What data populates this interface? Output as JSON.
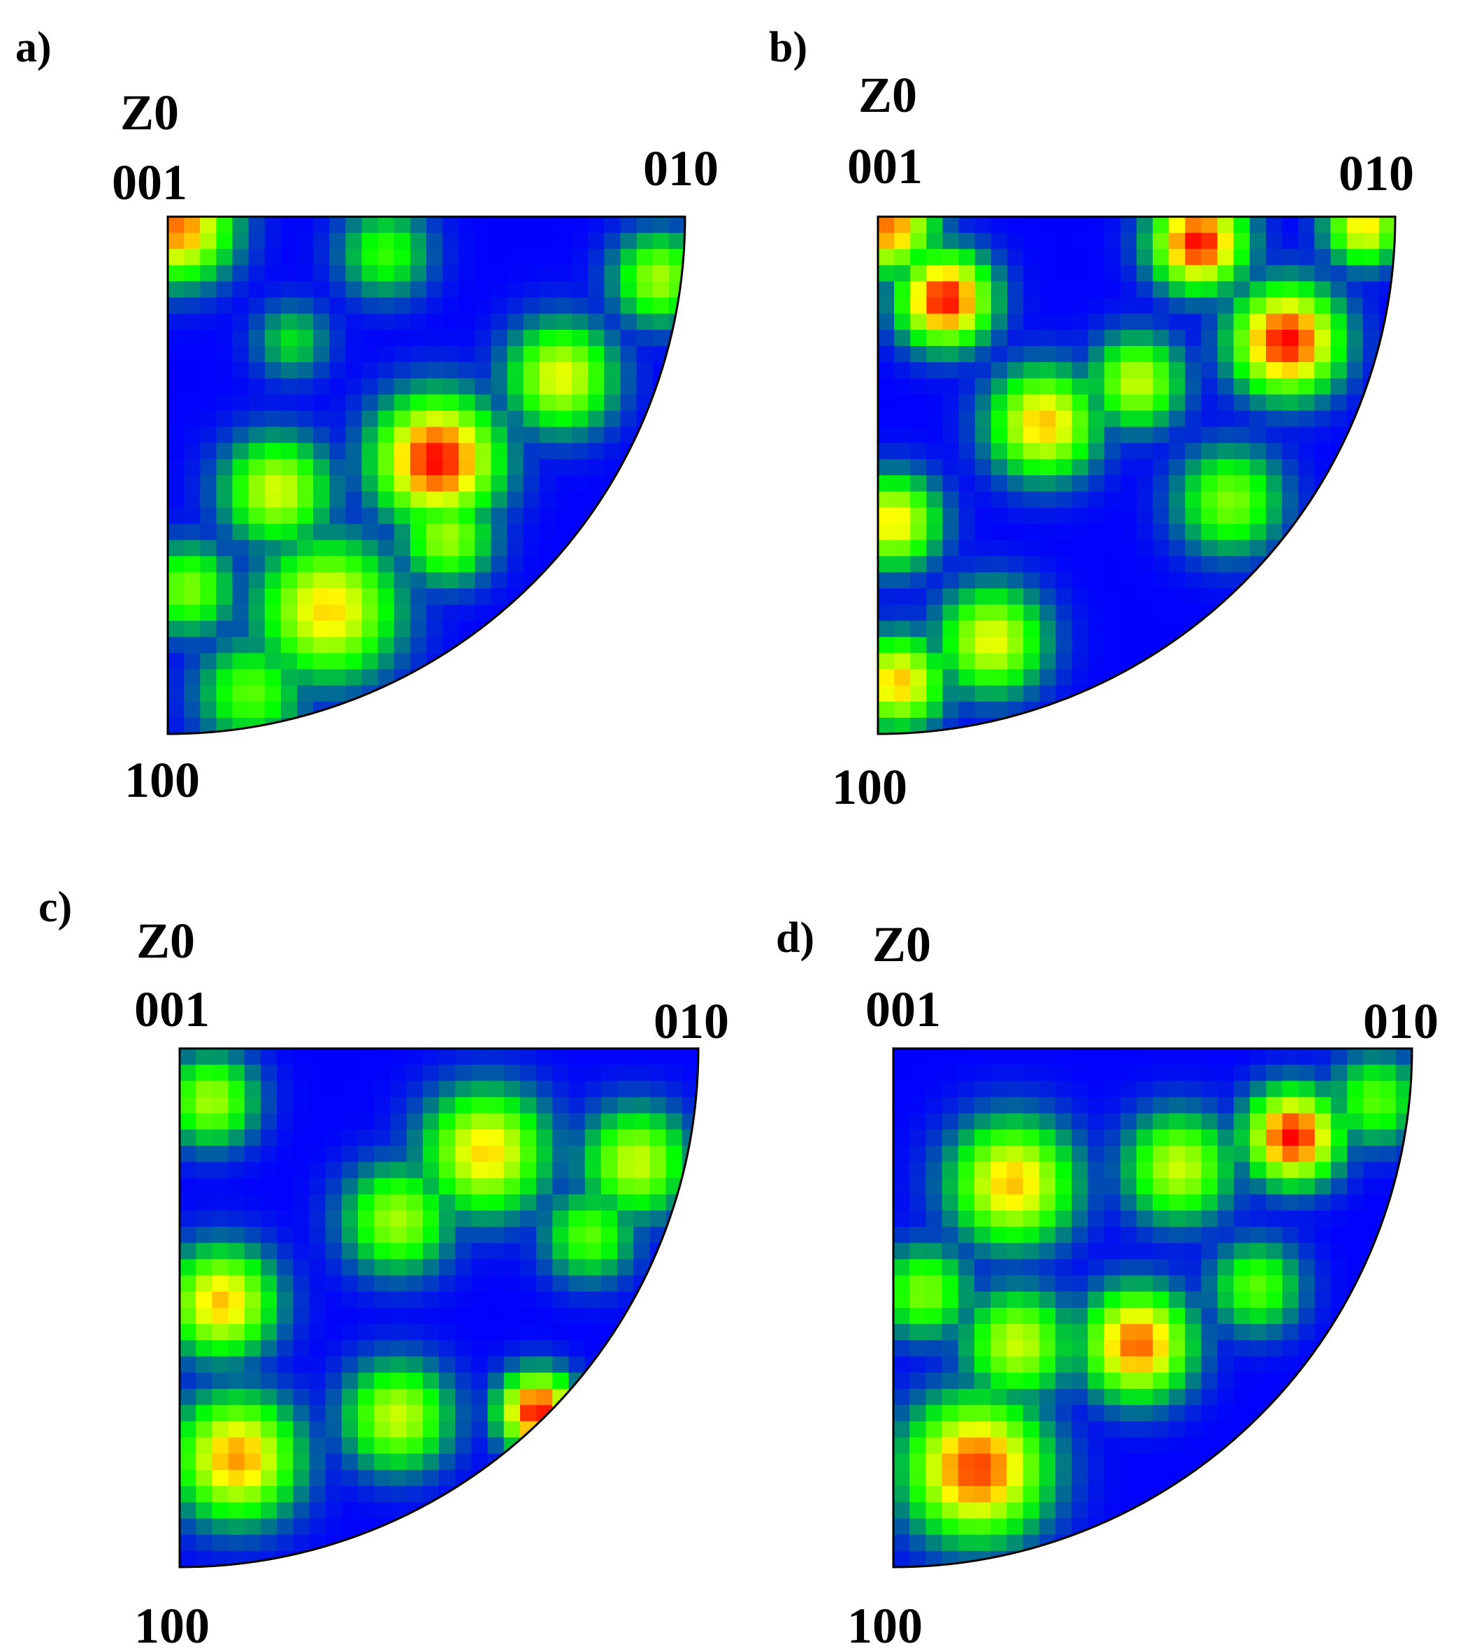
{
  "chart_data": [
    {
      "type": "heatmap",
      "panel_label": "a)",
      "map_label": "Z0",
      "corner_labels": {
        "top_left": "001",
        "top_right": "010",
        "bottom_left": "100"
      },
      "colors": [
        "#0000ff",
        "#00ff00",
        "#ffff00",
        "#ff0000"
      ],
      "peaks": [
        {
          "x": 0.02,
          "y": 0.02,
          "sigma": 0.07,
          "value": 0.85
        },
        {
          "x": 0.52,
          "y": 0.47,
          "sigma": 0.08,
          "value": 1.0
        },
        {
          "x": 0.21,
          "y": 0.53,
          "sigma": 0.07,
          "value": 0.62
        },
        {
          "x": 0.31,
          "y": 0.76,
          "sigma": 0.09,
          "value": 0.72
        },
        {
          "x": 0.76,
          "y": 0.31,
          "sigma": 0.07,
          "value": 0.65
        },
        {
          "x": 0.95,
          "y": 0.12,
          "sigma": 0.06,
          "value": 0.55
        },
        {
          "x": 0.24,
          "y": 0.24,
          "sigma": 0.05,
          "value": 0.3
        },
        {
          "x": 0.04,
          "y": 0.72,
          "sigma": 0.06,
          "value": 0.5
        },
        {
          "x": 0.16,
          "y": 0.92,
          "sigma": 0.07,
          "value": 0.45
        },
        {
          "x": 0.54,
          "y": 0.62,
          "sigma": 0.06,
          "value": 0.55
        },
        {
          "x": 0.42,
          "y": 0.07,
          "sigma": 0.06,
          "value": 0.4
        }
      ]
    },
    {
      "type": "heatmap",
      "panel_label": "b)",
      "map_label": "Z0",
      "corner_labels": {
        "top_left": "001",
        "top_right": "010",
        "bottom_left": "100"
      },
      "colors": [
        "#0000ff",
        "#00ff00",
        "#ffff00",
        "#ff0000"
      ],
      "peaks": [
        {
          "x": 0.02,
          "y": 0.02,
          "sigma": 0.06,
          "value": 0.85
        },
        {
          "x": 0.13,
          "y": 0.16,
          "sigma": 0.06,
          "value": 1.0
        },
        {
          "x": 0.62,
          "y": 0.05,
          "sigma": 0.06,
          "value": 1.0
        },
        {
          "x": 0.79,
          "y": 0.24,
          "sigma": 0.07,
          "value": 1.0
        },
        {
          "x": 0.32,
          "y": 0.4,
          "sigma": 0.07,
          "value": 0.75
        },
        {
          "x": 0.5,
          "y": 0.32,
          "sigma": 0.06,
          "value": 0.6
        },
        {
          "x": 0.03,
          "y": 0.59,
          "sigma": 0.06,
          "value": 0.7
        },
        {
          "x": 0.22,
          "y": 0.82,
          "sigma": 0.07,
          "value": 0.65
        },
        {
          "x": 0.04,
          "y": 0.9,
          "sigma": 0.06,
          "value": 0.75
        },
        {
          "x": 0.94,
          "y": 0.02,
          "sigma": 0.05,
          "value": 0.7
        },
        {
          "x": 0.68,
          "y": 0.55,
          "sigma": 0.07,
          "value": 0.5
        }
      ]
    },
    {
      "type": "heatmap",
      "panel_label": "c)",
      "map_label": "Z0",
      "corner_labels": {
        "top_left": "001",
        "top_right": "010",
        "bottom_left": "100"
      },
      "colors": [
        "#0000ff",
        "#00ff00",
        "#ffff00",
        "#ff0000"
      ],
      "peaks": [
        {
          "x": 0.06,
          "y": 0.1,
          "sigma": 0.06,
          "value": 0.55
        },
        {
          "x": 0.59,
          "y": 0.2,
          "sigma": 0.08,
          "value": 0.72
        },
        {
          "x": 0.42,
          "y": 0.33,
          "sigma": 0.07,
          "value": 0.55
        },
        {
          "x": 0.88,
          "y": 0.22,
          "sigma": 0.07,
          "value": 0.6
        },
        {
          "x": 0.08,
          "y": 0.49,
          "sigma": 0.07,
          "value": 0.75
        },
        {
          "x": 0.11,
          "y": 0.79,
          "sigma": 0.08,
          "value": 0.8
        },
        {
          "x": 0.42,
          "y": 0.71,
          "sigma": 0.07,
          "value": 0.6
        },
        {
          "x": 0.69,
          "y": 0.7,
          "sigma": 0.05,
          "value": 1.0
        },
        {
          "x": 0.79,
          "y": 0.36,
          "sigma": 0.06,
          "value": 0.45
        }
      ]
    },
    {
      "type": "heatmap",
      "panel_label": "d)",
      "map_label": "Z0",
      "corner_labels": {
        "top_left": "001",
        "top_right": "010",
        "bottom_left": "100"
      },
      "colors": [
        "#0000ff",
        "#00ff00",
        "#ffff00",
        "#ff0000"
      ],
      "peaks": [
        {
          "x": 0.23,
          "y": 0.26,
          "sigma": 0.08,
          "value": 0.75
        },
        {
          "x": 0.55,
          "y": 0.23,
          "sigma": 0.07,
          "value": 0.6
        },
        {
          "x": 0.77,
          "y": 0.17,
          "sigma": 0.06,
          "value": 1.0
        },
        {
          "x": 0.24,
          "y": 0.57,
          "sigma": 0.07,
          "value": 0.6
        },
        {
          "x": 0.47,
          "y": 0.57,
          "sigma": 0.07,
          "value": 0.88
        },
        {
          "x": 0.16,
          "y": 0.81,
          "sigma": 0.09,
          "value": 0.92
        },
        {
          "x": 0.06,
          "y": 0.47,
          "sigma": 0.06,
          "value": 0.5
        },
        {
          "x": 0.93,
          "y": 0.1,
          "sigma": 0.06,
          "value": 0.45
        },
        {
          "x": 0.7,
          "y": 0.46,
          "sigma": 0.06,
          "value": 0.45
        }
      ]
    }
  ]
}
